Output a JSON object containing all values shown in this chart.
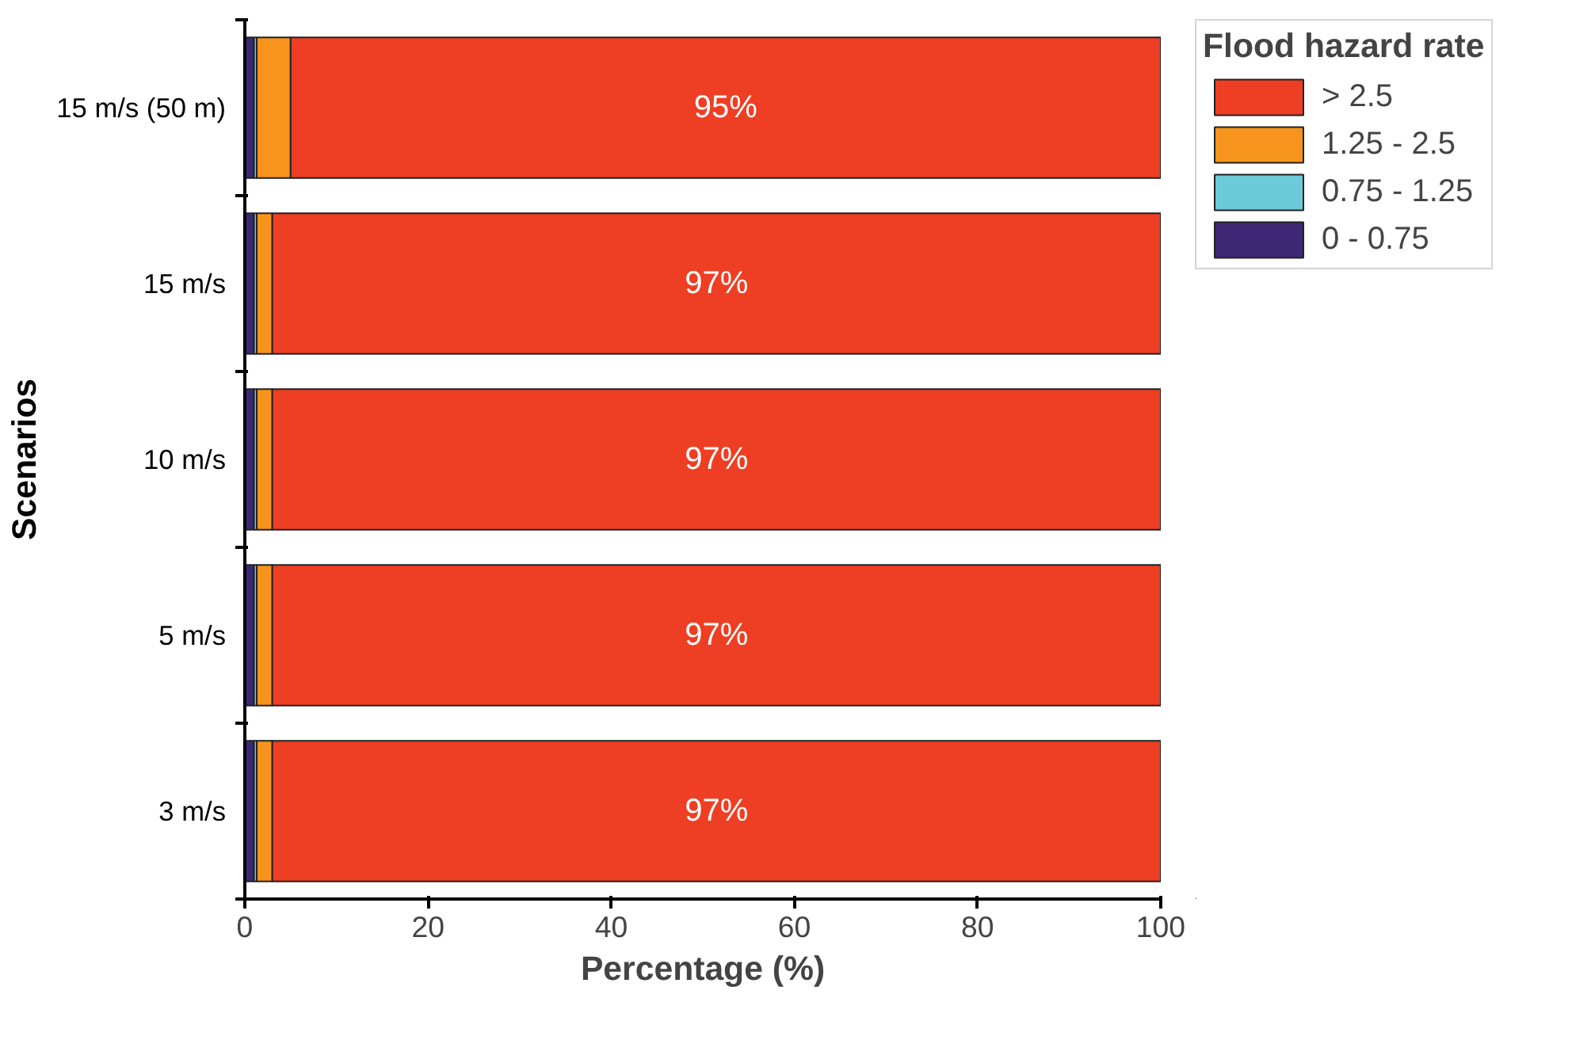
{
  "chart_data": {
    "type": "bar",
    "orientation": "horizontal",
    "stacked": true,
    "categories": [
      "15 m/s (50 m)",
      "15 m/s",
      "10 m/s",
      "5 m/s",
      "3 m/s"
    ],
    "xlabel": "Percentage (%)",
    "ylabel": "Scenarios",
    "legend_title": "Flood hazard rate",
    "legend": "top right",
    "xlim": [
      0,
      100
    ],
    "xticks": [
      0,
      20,
      40,
      60,
      80,
      100
    ],
    "grid": false,
    "series": [
      {
        "name": "0 - 0.75",
        "color": "#3d2874",
        "values": [
          1.0,
          1.0,
          1.0,
          1.0,
          1.0
        ]
      },
      {
        "name": "0.75 - 1.25",
        "color": "#6dcbd9",
        "values": [
          0.3,
          0.3,
          0.3,
          0.3,
          0.3
        ]
      },
      {
        "name": "1.25 - 2.5",
        "color": "#f7941d",
        "values": [
          3.7,
          1.7,
          1.7,
          1.7,
          1.7
        ]
      },
      {
        "name": "> 2.5",
        "color": "#ee3e23",
        "values": [
          95,
          97,
          97,
          97,
          97
        ],
        "value_labels": [
          "95%",
          "97%",
          "97%",
          "97%",
          "97%"
        ]
      }
    ]
  }
}
